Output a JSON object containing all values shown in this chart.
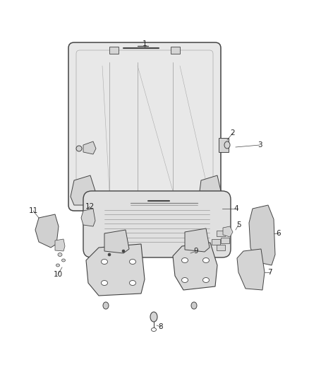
{
  "background_color": "#ffffff",
  "fig_width": 4.38,
  "fig_height": 5.33,
  "dpi": 100,
  "label_color": "#222222",
  "label_fontsize": 7.5,
  "line_color": "#444444",
  "part_fill": "#e8e8e8",
  "part_fill2": "#d4d4d4",
  "line_width": 0.7
}
